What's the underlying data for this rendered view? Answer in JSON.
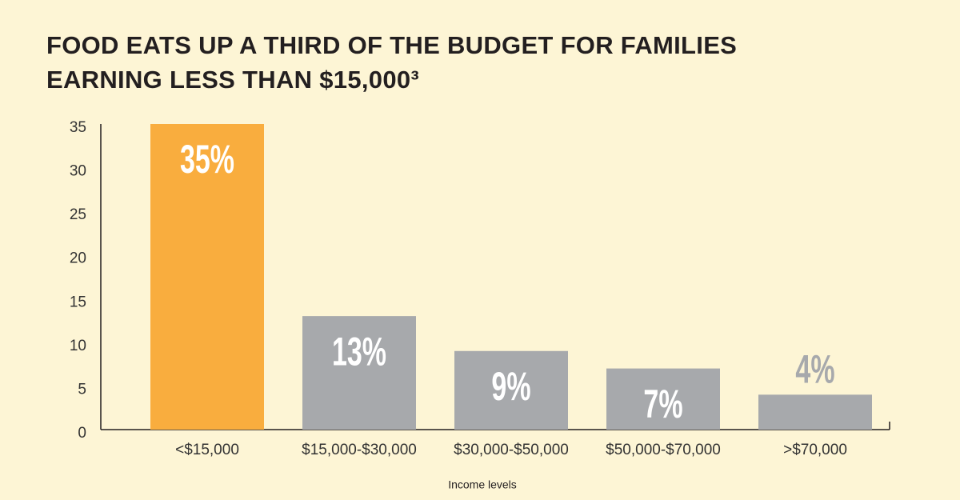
{
  "chart_data": {
    "type": "bar",
    "title": [
      "FOOD EATS UP A THIRD OF THE BUDGET FOR FAMILIES",
      "EARNING LESS THAN $15,000³"
    ],
    "x_label": "Income levels",
    "categories": [
      "<$15,000",
      "$15,000-$30,000",
      "$30,000-$50,000",
      "$50,000-$70,000",
      ">$70,000"
    ],
    "values": [
      35,
      13,
      9,
      7,
      4
    ],
    "value_labels": [
      "35%",
      "13%",
      "9%",
      "7%",
      "4%"
    ],
    "colors": [
      "#f9ad3e",
      "#a7a9ac",
      "#a7a9ac",
      "#a7a9ac",
      "#a7a9ac"
    ],
    "ylim": [
      0,
      35
    ],
    "yticks": [
      0,
      5,
      10,
      15,
      20,
      25,
      30,
      35
    ],
    "grid": false
  }
}
